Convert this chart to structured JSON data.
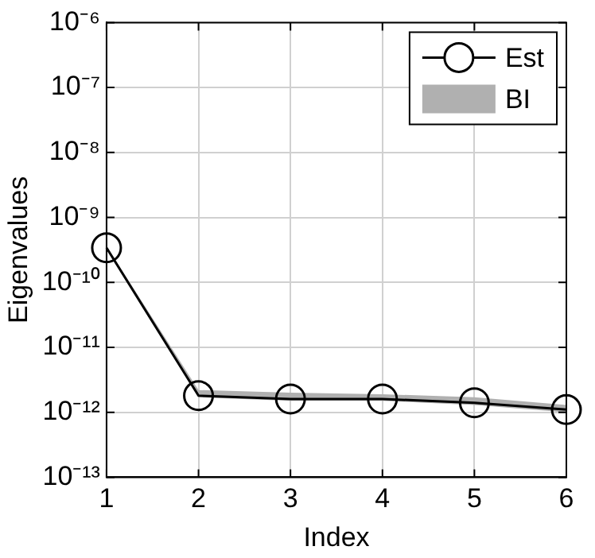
{
  "chart_data": {
    "type": "line",
    "xlabel": "Index",
    "ylabel": "Eigenvalues",
    "x": [
      1,
      2,
      3,
      4,
      5,
      6
    ],
    "xlim": [
      1,
      6
    ],
    "xticks": [
      1,
      2,
      3,
      4,
      5,
      6
    ],
    "log": "y",
    "ylim": [
      1e-13,
      1e-06
    ],
    "yticks": [
      {
        "value": 1e-13,
        "label": "10⁻¹³"
      },
      {
        "value": 1e-12,
        "label": "10⁻¹²"
      },
      {
        "value": 1e-11,
        "label": "10⁻¹¹"
      },
      {
        "value": 1e-10,
        "label": "10⁻¹⁰"
      },
      {
        "value": 1e-09,
        "label": "10⁻⁹"
      },
      {
        "value": 1e-08,
        "label": "10⁻⁸"
      },
      {
        "value": 1e-07,
        "label": "10⁻⁷"
      },
      {
        "value": 1e-06,
        "label": "10⁻⁶"
      }
    ],
    "series": [
      {
        "name": "Est",
        "color": "#000000",
        "marker": "circle",
        "values": [
          3.4e-10,
          1.8e-12,
          1.6e-12,
          1.6e-12,
          1.4e-12,
          1.1e-12
        ]
      },
      {
        "name": "BI",
        "type": "area",
        "color": "#b0b0b0",
        "values": [
          null,
          null,
          null,
          null,
          null,
          null
        ],
        "lower": [
          3.2e-10,
          1.7e-12,
          1.5e-12,
          1.5e-12,
          1.3e-12,
          1e-12
        ],
        "upper": [
          3.6e-10,
          2.2e-12,
          2e-12,
          1.9e-12,
          1.7e-12,
          1.3e-12
        ]
      }
    ],
    "grid": true,
    "legend": "top right",
    "line_style": "solid"
  }
}
